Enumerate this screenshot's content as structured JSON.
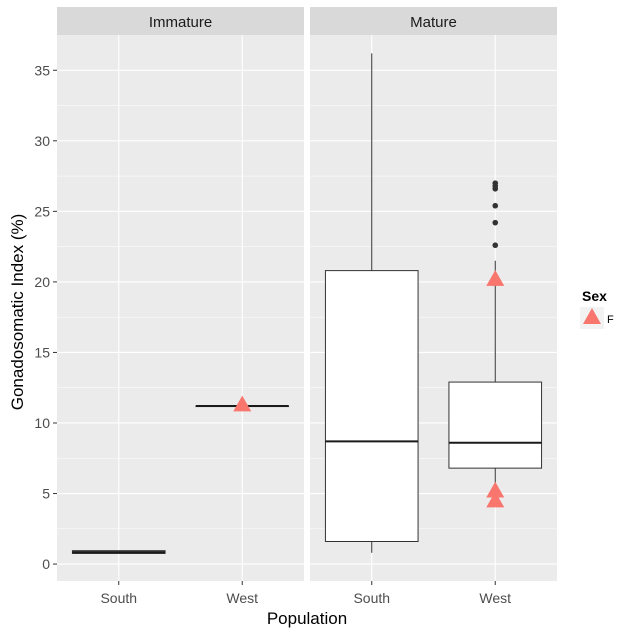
{
  "chart_data": {
    "type": "boxplot",
    "xlabel": "Population",
    "ylabel": "Gonadosomatic Index (%)",
    "ylim": [
      -1.2,
      37.5
    ],
    "yticks": [
      0,
      5,
      10,
      15,
      20,
      25,
      30,
      35
    ],
    "categories": [
      "South",
      "West"
    ],
    "grid": true,
    "legend": {
      "title": "Sex",
      "placement": "right",
      "entries": [
        {
          "label": "F",
          "color": "#F8766D",
          "shape": "triangle"
        }
      ]
    },
    "colors": {
      "panel_bg": "#EBEBEB",
      "strip_bg": "#D9D9D9",
      "grid": "#FFFFFF",
      "box_fill": "#FFFFFF",
      "box_line": "#333333",
      "point": "#F8766D"
    },
    "facets": [
      {
        "name": "Immature",
        "boxes": [
          {
            "category": "South",
            "min": 0.75,
            "q1": 0.75,
            "median": 0.85,
            "q3": 0.95,
            "max": 0.95,
            "outliers": []
          },
          {
            "category": "West",
            "min": 11.2,
            "q1": 11.2,
            "median": 11.2,
            "q3": 11.2,
            "max": 11.2,
            "outliers": []
          }
        ],
        "points": [
          {
            "category": "West",
            "y": 11.3,
            "sex": "F"
          }
        ]
      },
      {
        "name": "Mature",
        "boxes": [
          {
            "category": "South",
            "min": 0.8,
            "q1": 1.6,
            "median": 8.7,
            "q3": 20.8,
            "max": 36.2,
            "outliers": []
          },
          {
            "category": "West",
            "min": 4.8,
            "q1": 6.8,
            "median": 8.6,
            "q3": 12.9,
            "max": 21.5,
            "outliers": [
              22.6,
              24.2,
              25.4,
              26.6,
              26.8,
              27.0
            ]
          }
        ],
        "points": [
          {
            "category": "West",
            "y": 20.2,
            "sex": "F"
          },
          {
            "category": "West",
            "y": 5.2,
            "sex": "F"
          },
          {
            "category": "West",
            "y": 4.5,
            "sex": "F"
          }
        ]
      }
    ]
  }
}
